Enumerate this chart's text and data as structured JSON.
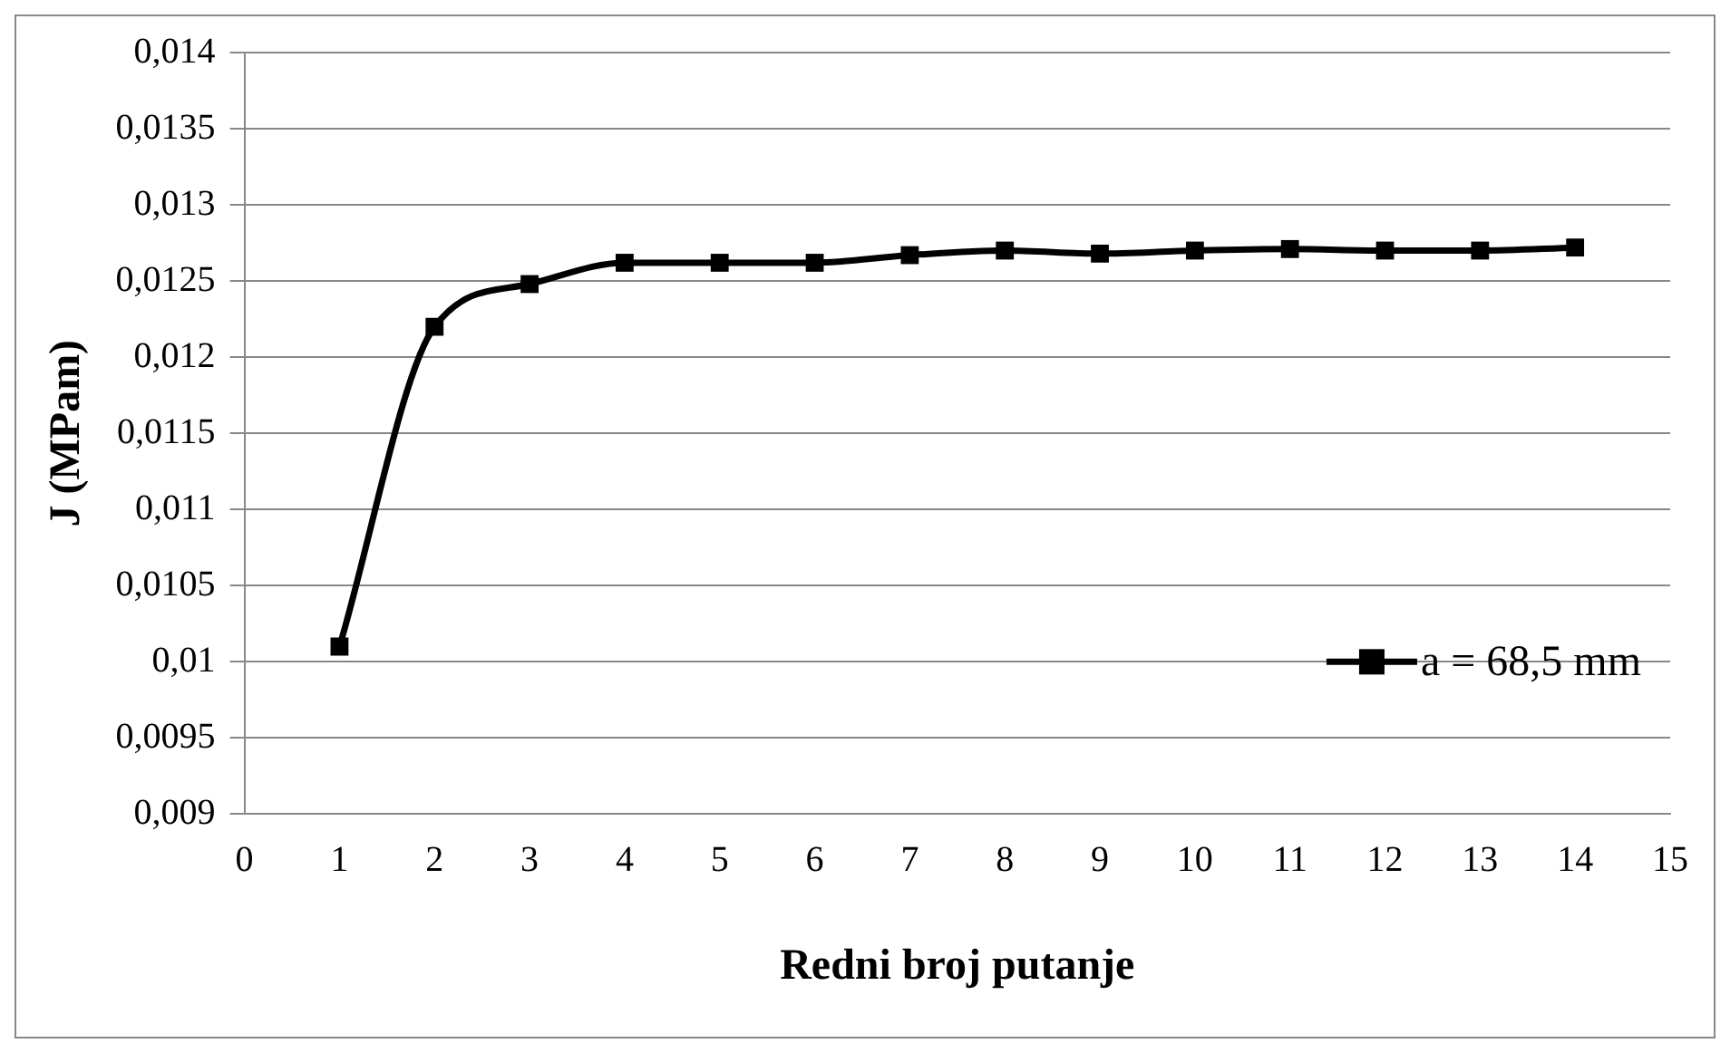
{
  "chart_data": {
    "type": "line",
    "xlabel": "Redni broj putanje",
    "ylabel": "J (MPam)",
    "x": [
      1,
      2,
      3,
      4,
      5,
      6,
      7,
      8,
      9,
      10,
      11,
      12,
      13,
      14
    ],
    "series": [
      {
        "name": "a = 68,5 mm",
        "color": "#000000",
        "values": [
          0.0101,
          0.0122,
          0.01248,
          0.01262,
          0.01262,
          0.01262,
          0.01267,
          0.0127,
          0.01268,
          0.0127,
          0.01271,
          0.0127,
          0.0127,
          0.01272
        ]
      }
    ],
    "xlim": [
      0,
      15
    ],
    "xticks": [
      0,
      1,
      2,
      3,
      4,
      5,
      6,
      7,
      8,
      9,
      10,
      11,
      12,
      13,
      14,
      15
    ],
    "ylim": [
      0.009,
      0.014
    ],
    "yticks": [
      {
        "value": 0.009,
        "label": "0,009"
      },
      {
        "value": 0.0095,
        "label": "0,0095"
      },
      {
        "value": 0.01,
        "label": "0,01"
      },
      {
        "value": 0.0105,
        "label": "0,0105"
      },
      {
        "value": 0.011,
        "label": "0,011"
      },
      {
        "value": 0.0115,
        "label": "0,0115"
      },
      {
        "value": 0.012,
        "label": "0,012"
      },
      {
        "value": 0.0125,
        "label": "0,0125"
      },
      {
        "value": 0.013,
        "label": "0,013"
      },
      {
        "value": 0.0135,
        "label": "0,0135"
      },
      {
        "value": 0.014,
        "label": "0,014"
      }
    ],
    "grid": "y",
    "legend": "bottom right",
    "marker": "square",
    "line_style": "solid"
  }
}
